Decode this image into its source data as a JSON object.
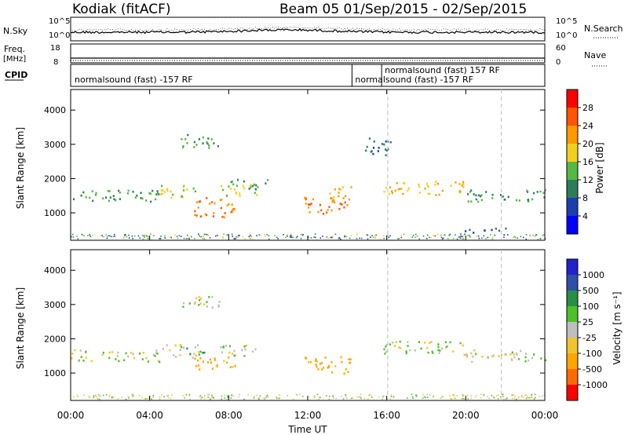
{
  "header": {
    "title": "Kodiak (fitACF)",
    "beam_info": "Beam 05  01/Sep/2015 - 02/Sep/2015"
  },
  "top_panels": {
    "nsky_label": "N.Sky",
    "nsky_ticks": [
      "10^5",
      "10^0"
    ],
    "nsearch_label": "N.Search",
    "nsearch_ticks": [
      "10^5",
      "10^0"
    ],
    "freq_label": "Freq.",
    "freq_unit": "[MHz]",
    "freq_ticks": [
      "18",
      "8"
    ],
    "nave_label": "Nave",
    "nave_ticks": [
      "60",
      "0"
    ],
    "cpid_label": "CPID",
    "cpid_entries": [
      {
        "text": "normalsound (fast) -157 RF",
        "time": 0.2
      },
      {
        "text": "normalsound (fast) -157 RF",
        "time": 14.4
      },
      {
        "text": "normalsound (fast) 157 RF",
        "time": 15.9
      }
    ]
  },
  "colors": {
    "power": [
      "#0000ff",
      "#1c3fae",
      "#2e7d5a",
      "#55b842",
      "#f2cf1e",
      "#ff9900",
      "#ff5500",
      "#ff0000"
    ],
    "velocity": [
      "#ff0000",
      "#ff6a00",
      "#ffa500",
      "#f0c430",
      "#bebebe",
      "#4fbf2a",
      "#2a8f46",
      "#2f4fa8",
      "#2222cc"
    ]
  },
  "chart_data": [
    {
      "type": "heatmap",
      "name": "power",
      "ylabel": "Slant Range [km]",
      "yticks": [
        "1000",
        "2000",
        "3000",
        "4000"
      ],
      "ylim": [
        200,
        4600
      ],
      "xlim": [
        0,
        24
      ],
      "colorbar": {
        "label": "Power [dB]",
        "ticks": [
          "4",
          "8",
          "12",
          "16",
          "20",
          "24",
          "28"
        ],
        "range": [
          0,
          32
        ]
      },
      "blobs": [
        {
          "t0": 0.0,
          "t1": 4.5,
          "r0": 1350,
          "r1": 1700,
          "level": 12
        },
        {
          "t0": 4.5,
          "t1": 6.5,
          "r0": 1450,
          "r1": 1850,
          "level": 16
        },
        {
          "t0": 6.2,
          "t1": 8.3,
          "r0": 900,
          "r1": 1500,
          "level": 24
        },
        {
          "t0": 7.5,
          "t1": 9.5,
          "r0": 1500,
          "r1": 1850,
          "level": 16
        },
        {
          "t0": 8.0,
          "t1": 10.0,
          "r0": 1700,
          "r1": 2000,
          "level": 12
        },
        {
          "t0": 11.8,
          "t1": 14.2,
          "r0": 1000,
          "r1": 1500,
          "level": 24
        },
        {
          "t0": 13.0,
          "t1": 14.2,
          "r0": 1400,
          "r1": 1800,
          "level": 20
        },
        {
          "t0": 15.8,
          "t1": 20.0,
          "r0": 1550,
          "r1": 1950,
          "level": 20
        },
        {
          "t0": 20.0,
          "t1": 24.0,
          "r0": 1350,
          "r1": 1700,
          "level": 12
        },
        {
          "t0": 5.5,
          "t1": 7.5,
          "r0": 2900,
          "r1": 3300,
          "level": 12
        },
        {
          "t0": 14.8,
          "t1": 16.3,
          "r0": 2700,
          "r1": 3200,
          "level": 8
        },
        {
          "t0": 19.5,
          "t1": 22.0,
          "r0": 450,
          "r1": 600,
          "level": 8
        }
      ]
    },
    {
      "type": "heatmap",
      "name": "velocity",
      "ylabel": "Slant Range [km]",
      "yticks": [
        "1000",
        "2000",
        "3000",
        "4000"
      ],
      "ylim": [
        200,
        4600
      ],
      "xlim": [
        0,
        24
      ],
      "colorbar": {
        "label": "Velocity [m s⁻¹]",
        "ticks": [
          "1000",
          "500",
          "100",
          "25",
          "-25",
          "-100",
          "-500",
          "-1000"
        ]
      },
      "blobs": [
        {
          "t0": 0.0,
          "t1": 4.5,
          "r0": 1350,
          "r1": 1700,
          "v": 0
        },
        {
          "t0": 4.5,
          "t1": 6.5,
          "r0": 1450,
          "r1": 1850,
          "v": 0
        },
        {
          "t0": 6.2,
          "t1": 8.3,
          "r0": 1100,
          "r1": 1500,
          "v": -150
        },
        {
          "t0": 7.5,
          "t1": 9.5,
          "r0": 1500,
          "r1": 1850,
          "v": 0
        },
        {
          "t0": 11.8,
          "t1": 14.2,
          "r0": 1000,
          "r1": 1500,
          "v": -150
        },
        {
          "t0": 15.8,
          "t1": 20.0,
          "r0": 1550,
          "r1": 1950,
          "v": 0
        },
        {
          "t0": 20.0,
          "t1": 24.0,
          "r0": 1350,
          "r1": 1700,
          "v": 0
        },
        {
          "t0": 5.5,
          "t1": 7.5,
          "r0": 2900,
          "r1": 3300,
          "v": 0
        },
        {
          "t0": 5.8,
          "t1": 6.8,
          "r0": 1550,
          "r1": 1750,
          "v": 150
        }
      ]
    }
  ],
  "x_axis": {
    "xlabel": "Time UT",
    "ticks": [
      "00:00",
      "04:00",
      "08:00",
      "12:00",
      "16:00",
      "20:00",
      "00:00"
    ]
  }
}
